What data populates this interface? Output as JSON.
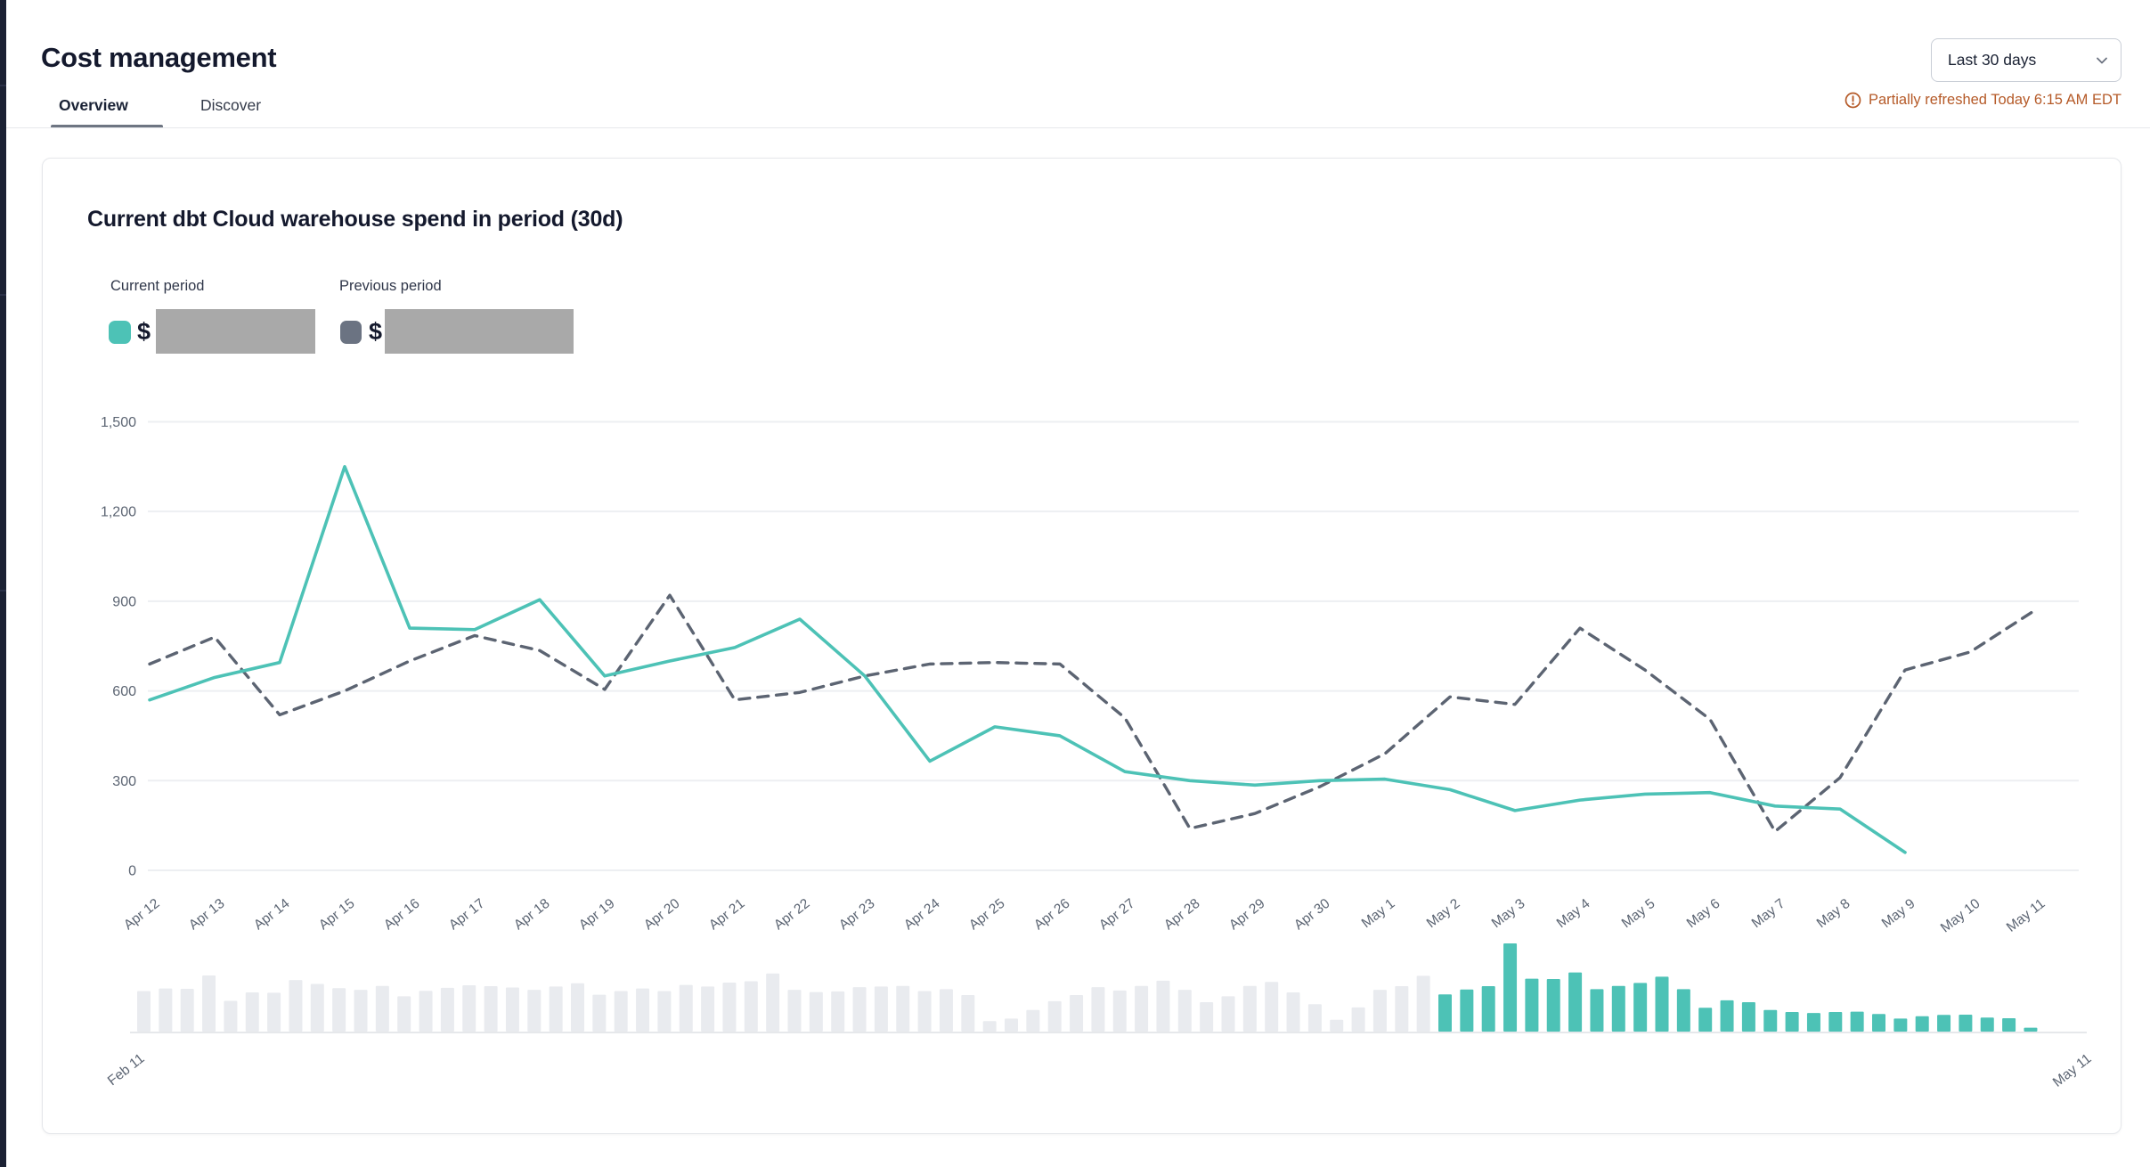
{
  "page": {
    "title": "Cost management"
  },
  "tabs": [
    {
      "label": "Overview",
      "active": true
    },
    {
      "label": "Discover",
      "active": false
    }
  ],
  "period_select": {
    "value": "Last 30 days",
    "icon": "chevron-down-icon"
  },
  "refresh_notice": {
    "icon": "alert-circle-icon",
    "text": "Partially refreshed Today 6:15 AM EDT"
  },
  "card": {
    "title": "Current dbt Cloud warehouse spend in period (30d)",
    "legend": [
      {
        "label": "Current period",
        "currency": "$",
        "swatch": "#4DC2B6",
        "value_redacted": true
      },
      {
        "label": "Previous period",
        "currency": "$",
        "swatch": "#6B7382",
        "value_redacted": true
      }
    ]
  },
  "chart_data": {
    "type": "line",
    "title": "Current dbt Cloud warehouse spend in period (30d)",
    "categories": [
      "Apr 12",
      "Apr 13",
      "Apr 14",
      "Apr 15",
      "Apr 16",
      "Apr 17",
      "Apr 18",
      "Apr 19",
      "Apr 20",
      "Apr 21",
      "Apr 22",
      "Apr 23",
      "Apr 24",
      "Apr 25",
      "Apr 26",
      "Apr 27",
      "Apr 28",
      "Apr 29",
      "Apr 30",
      "May 1",
      "May 2",
      "May 3",
      "May 4",
      "May 5",
      "May 6",
      "May 7",
      "May 8",
      "May 9",
      "May 10",
      "May 11"
    ],
    "series": [
      {
        "name": "Current period",
        "style": "solid",
        "color": "#4DC2B6",
        "values": [
          570,
          645,
          695,
          1350,
          810,
          805,
          905,
          650,
          700,
          745,
          840,
          650,
          365,
          480,
          450,
          330,
          300,
          285,
          300,
          305,
          270,
          200,
          235,
          255,
          260,
          215,
          205,
          60
        ]
      },
      {
        "name": "Previous period",
        "style": "dashed",
        "color": "#5C6472",
        "values": [
          690,
          780,
          520,
          600,
          700,
          785,
          735,
          605,
          920,
          570,
          595,
          650,
          690,
          695,
          690,
          510,
          140,
          190,
          280,
          390,
          580,
          555,
          810,
          670,
          505,
          130,
          310,
          670,
          730,
          870
        ]
      }
    ],
    "ylim": [
      0,
      1500
    ],
    "yticks": [
      0,
      300,
      600,
      900,
      1200,
      1500
    ],
    "ytick_labels": [
      "0",
      "300",
      "600",
      "900",
      "1,200",
      "1,500"
    ],
    "grid": "horizontal",
    "legend_position": "top-left",
    "minimap": {
      "type": "bar",
      "range_labels": [
        "Feb 11",
        "May 11"
      ],
      "unselected_values": [
        620,
        660,
        655,
        860,
        470,
        600,
        595,
        790,
        730,
        665,
        640,
        700,
        540,
        625,
        670,
        710,
        695,
        675,
        640,
        690,
        740,
        565,
        620,
        660,
        620,
        715,
        690,
        750,
        770,
        890,
        640,
        605,
        615,
        680,
        690,
        700,
        620,
        650,
        560,
        160,
        200,
        330,
        465,
        560,
        680,
        630,
        700,
        780,
        640,
        450,
        540,
        700,
        760,
        600,
        420,
        180,
        370,
        640,
        695,
        855
      ],
      "selected_values": [
        570,
        645,
        695,
        1350,
        810,
        805,
        905,
        650,
        700,
        745,
        840,
        650,
        365,
        480,
        450,
        330,
        300,
        285,
        300,
        305,
        270,
        200,
        235,
        255,
        260,
        215,
        205,
        60
      ],
      "empty_trailing_slots": 2
    }
  },
  "colors": {
    "teal": "#4DC2B6",
    "dashed_line": "#5C6472",
    "previous_swatch": "#6B7382",
    "redacted": "#A9A9A9",
    "grid": "#EDEFF2",
    "axis_text": "#5C6573",
    "gray_bar": "#E9EBEF",
    "baseline": "#E6E8EB",
    "orange": "#B55A28"
  }
}
